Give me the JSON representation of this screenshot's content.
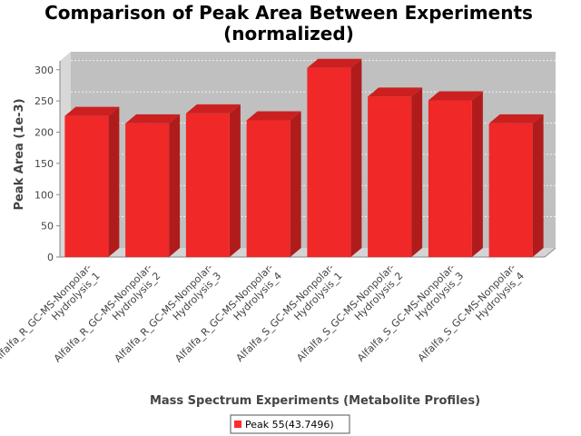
{
  "chart_data": {
    "type": "bar",
    "title_line1": "Comparison of Peak Area Between Experiments",
    "title_line2": "(normalized)",
    "xlabel": "Mass Spectrum Experiments (Metabolite Profiles)",
    "ylabel": "Peak Area (1e-3)",
    "ylim": [
      0,
      320
    ],
    "yticks": [
      "0",
      "50",
      "100",
      "150",
      "200",
      "250",
      "300"
    ],
    "grid": true,
    "legend_position": "bottom-center",
    "categories": [
      [
        "Alfalfa_R_GC-MS-Nonpolar-",
        "Hydrolysis_1"
      ],
      [
        "Alfalfa_R_GC-MS-Nonpolar-",
        "Hydrolysis_2"
      ],
      [
        "Alfalfa_R_GC-MS-Nonpolar-",
        "Hydrolysis_3"
      ],
      [
        "Alfalfa_R_GC-MS-Nonpolar-",
        "Hydrolysis_4"
      ],
      [
        "Alfalfa_S_GC-MS-Nonpolar-",
        "Hydrolysis_1"
      ],
      [
        "Alfalfa_S_GC-MS-Nonpolar-",
        "Hydrolysis_2"
      ],
      [
        "Alfalfa_S_GC-MS-Nonpolar-",
        "Hydrolysis_3"
      ],
      [
        "Alfalfa_S_GC-MS-Nonpolar-",
        "Hydrolysis_4"
      ]
    ],
    "series": [
      {
        "name": "Peak 55(43.7496)",
        "color": "#ff2a2a",
        "values": [
          226,
          214,
          230,
          219,
          303,
          257,
          251,
          214
        ]
      }
    ],
    "colors": {
      "plot_face": "#c0c0c0",
      "plot_side": "#d8d8d8",
      "plot_floor": "#d4d4d4",
      "bar_front": "#f02828",
      "bar_top": "#cc2020",
      "bar_side": "#b01c1c"
    }
  }
}
